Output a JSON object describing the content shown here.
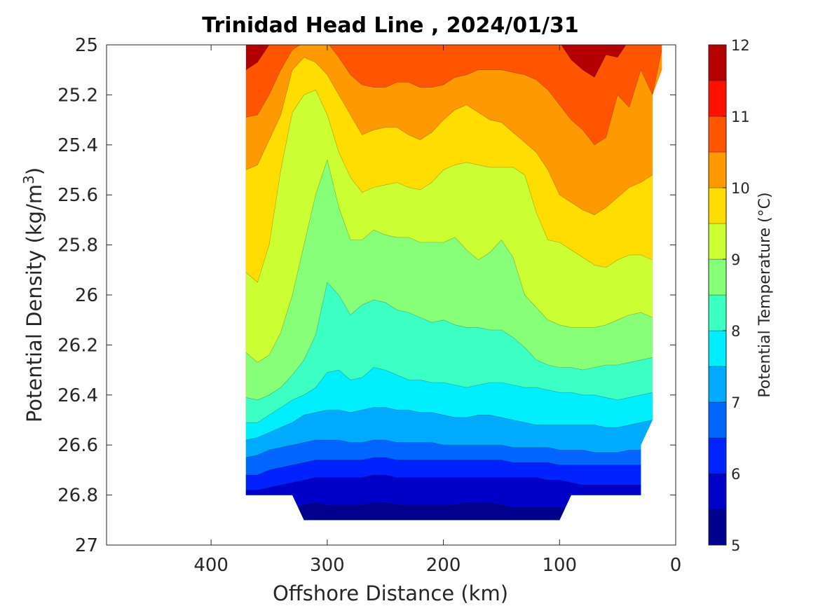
{
  "chart_data": {
    "type": "heatmap",
    "subtype": "filled-contour",
    "title": "Trinidad Head Line , 2024/01/31",
    "xlabel": "Offshore Distance (km)",
    "ylabel": "Potential Density (kg/m",
    "ylabel_superscript": "3",
    "ylabel_close": ")",
    "xlim": [
      490,
      0
    ],
    "x_reversed": true,
    "ylim": [
      25,
      27
    ],
    "y_reversed": true,
    "xticks": [
      400,
      300,
      200,
      100,
      0
    ],
    "xtick_labels": [
      "400",
      "300",
      "200",
      "100",
      "0"
    ],
    "yticks": [
      25,
      25.2,
      25.4,
      25.6,
      25.8,
      26,
      26.2,
      26.4,
      26.6,
      26.8,
      27
    ],
    "ytick_labels": [
      "25",
      "25.2",
      "25.4",
      "25.6",
      "25.8",
      "26",
      "26.2",
      "26.4",
      "26.6",
      "26.8",
      "27"
    ],
    "colorbar": {
      "label": "Potential Temperature (°C)",
      "range": [
        5,
        12
      ],
      "tick_values": [
        5,
        6,
        7,
        8,
        9,
        10,
        11,
        12
      ],
      "tick_labels": [
        "5",
        "6",
        "7",
        "8",
        "9",
        "10",
        "11",
        "12"
      ],
      "level_step": 0.5,
      "colormap": "jet",
      "level_colors": [
        "#00008c",
        "#0000c8",
        "#0022ff",
        "#0066ff",
        "#00aaff",
        "#00eeff",
        "#3cffc3",
        "#87ff78",
        "#ccff33",
        "#ffdd00",
        "#ff9900",
        "#ff5500",
        "#ff1100",
        "#b40000"
      ]
    },
    "x": [
      370,
      360,
      350,
      340,
      330,
      320,
      310,
      300,
      290,
      280,
      270,
      260,
      250,
      240,
      230,
      220,
      210,
      200,
      190,
      180,
      170,
      160,
      150,
      140,
      130,
      120,
      110,
      100,
      90,
      80,
      70,
      60,
      50,
      40,
      30,
      20,
      12
    ],
    "isopycnals_for_temperature": [
      {
        "temperature": 11.0,
        "density": [
          25.1,
          25.07,
          25.0,
          24.97,
          24.95,
          24.95,
          24.95,
          24.96,
          24.97,
          24.97,
          24.97,
          24.96,
          24.96,
          24.95,
          24.95,
          24.95,
          24.95,
          24.95,
          24.95,
          24.95,
          24.95,
          24.95,
          24.95,
          24.95,
          24.95,
          24.95,
          24.97,
          24.99,
          25.06,
          25.1,
          25.13,
          25.04,
          25.05,
          24.98,
          24.96,
          25.0,
          24.98
        ]
      },
      {
        "temperature": 10.5,
        "density": [
          25.29,
          25.28,
          25.2,
          25.1,
          25.02,
          24.99,
          24.98,
          24.99,
          25.05,
          25.12,
          25.16,
          25.17,
          25.17,
          25.15,
          25.15,
          25.17,
          25.17,
          25.16,
          25.13,
          25.12,
          25.1,
          25.1,
          25.1,
          25.11,
          25.12,
          25.14,
          25.18,
          25.24,
          25.3,
          25.34,
          25.4,
          25.37,
          25.2,
          25.25,
          25.1,
          25.2,
          25.02
        ]
      },
      {
        "temperature": 10.0,
        "density": [
          25.5,
          25.48,
          25.38,
          25.28,
          25.1,
          25.05,
          25.07,
          25.12,
          25.2,
          25.28,
          25.36,
          25.34,
          25.33,
          25.33,
          25.36,
          25.38,
          25.35,
          25.3,
          25.26,
          25.24,
          25.27,
          25.3,
          25.31,
          25.35,
          25.39,
          25.43,
          25.5,
          25.6,
          25.63,
          25.66,
          25.68,
          25.65,
          25.61,
          25.57,
          25.55,
          25.52,
          25.5
        ]
      },
      {
        "temperature": 9.5,
        "density": [
          25.91,
          25.95,
          25.8,
          25.5,
          25.27,
          25.2,
          25.18,
          25.28,
          25.43,
          25.53,
          25.59,
          25.57,
          25.56,
          25.55,
          25.57,
          25.58,
          25.55,
          25.5,
          25.48,
          25.47,
          25.48,
          25.49,
          25.49,
          25.49,
          25.52,
          25.67,
          25.78,
          25.79,
          25.82,
          25.85,
          25.88,
          25.89,
          25.86,
          25.84,
          25.84,
          25.86,
          25.86
        ]
      },
      {
        "temperature": 9.0,
        "density": [
          26.23,
          26.27,
          26.24,
          26.15,
          26.0,
          25.8,
          25.6,
          25.46,
          25.65,
          25.78,
          25.78,
          25.74,
          25.76,
          25.77,
          25.77,
          25.79,
          25.79,
          25.79,
          25.77,
          25.82,
          25.86,
          25.83,
          25.78,
          25.85,
          26.0,
          26.05,
          26.1,
          26.12,
          26.13,
          26.13,
          26.13,
          26.12,
          26.1,
          26.08,
          26.07,
          26.09,
          26.09
        ]
      },
      {
        "temperature": 8.5,
        "density": [
          26.41,
          26.42,
          26.4,
          26.37,
          26.32,
          26.26,
          26.16,
          25.95,
          26.0,
          26.08,
          26.04,
          26.02,
          26.03,
          26.06,
          26.07,
          26.09,
          26.11,
          26.1,
          26.12,
          26.13,
          26.13,
          26.14,
          26.14,
          26.17,
          26.21,
          26.26,
          26.28,
          26.29,
          26.29,
          26.3,
          26.29,
          26.28,
          26.28,
          26.27,
          26.26,
          26.25,
          26.25
        ]
      },
      {
        "temperature": 8.0,
        "density": [
          26.51,
          26.51,
          26.48,
          26.45,
          26.42,
          26.4,
          26.37,
          26.31,
          26.3,
          26.34,
          26.33,
          26.29,
          26.3,
          26.32,
          26.34,
          26.34,
          26.35,
          26.35,
          26.36,
          26.37,
          26.36,
          26.35,
          26.35,
          26.36,
          26.37,
          26.37,
          26.38,
          26.39,
          26.39,
          26.4,
          26.4,
          26.41,
          26.42,
          26.41,
          26.4,
          26.39,
          26.39
        ]
      },
      {
        "temperature": 7.5,
        "density": [
          26.58,
          26.57,
          26.55,
          26.53,
          26.51,
          26.48,
          26.47,
          26.46,
          26.46,
          26.47,
          26.46,
          26.45,
          26.45,
          26.46,
          26.46,
          26.47,
          26.47,
          26.48,
          26.49,
          26.49,
          26.48,
          26.48,
          26.49,
          26.5,
          26.51,
          26.52,
          26.52,
          26.52,
          26.52,
          26.52,
          26.52,
          26.53,
          26.53,
          26.52,
          26.51,
          26.5,
          26.5
        ]
      },
      {
        "temperature": 7.0,
        "density": [
          26.65,
          26.64,
          26.62,
          26.61,
          26.6,
          26.59,
          26.58,
          26.58,
          26.58,
          26.59,
          26.59,
          26.58,
          26.58,
          26.59,
          26.59,
          26.59,
          26.59,
          26.6,
          26.6,
          26.6,
          26.6,
          26.6,
          26.6,
          26.61,
          26.61,
          26.61,
          26.61,
          26.62,
          26.62,
          26.62,
          26.63,
          26.63,
          26.63,
          26.62,
          26.62,
          26.62,
          26.62
        ]
      },
      {
        "temperature": 6.5,
        "density": [
          26.72,
          26.72,
          26.7,
          26.69,
          26.68,
          26.67,
          26.66,
          26.66,
          26.66,
          26.66,
          26.66,
          26.65,
          26.65,
          26.66,
          26.66,
          26.66,
          26.66,
          26.66,
          26.66,
          26.66,
          26.66,
          26.66,
          26.66,
          26.67,
          26.67,
          26.67,
          26.67,
          26.68,
          26.68,
          26.68,
          26.68,
          26.68,
          26.68,
          26.68,
          26.68,
          26.68,
          26.68
        ]
      },
      {
        "temperature": 6.0,
        "density": [
          26.78,
          26.78,
          26.77,
          26.76,
          26.75,
          26.74,
          26.73,
          26.73,
          26.73,
          26.73,
          26.73,
          26.72,
          26.72,
          26.73,
          26.73,
          26.73,
          26.73,
          26.73,
          26.73,
          26.73,
          26.73,
          26.73,
          26.73,
          26.73,
          26.73,
          26.73,
          26.74,
          26.74,
          26.75,
          26.76,
          26.76,
          26.76,
          26.76,
          26.76,
          26.76,
          26.76,
          26.76
        ]
      },
      {
        "temperature": 5.5,
        "density": [
          26.85,
          26.85,
          26.85,
          26.85,
          26.85,
          26.84,
          26.83,
          26.84,
          26.84,
          26.84,
          26.84,
          26.83,
          26.83,
          26.84,
          26.84,
          26.84,
          26.84,
          26.84,
          26.84,
          26.83,
          26.83,
          26.83,
          26.84,
          26.85,
          26.85,
          26.85,
          26.85,
          26.85,
          26.85,
          26.85,
          26.85,
          26.85,
          26.85,
          26.85,
          26.85,
          26.85,
          26.85
        ]
      }
    ],
    "data_extent": {
      "top_boundary": {
        "x": [
          370,
          12
        ],
        "density": [
          25,
          25
        ]
      },
      "right_edge": {
        "x": [
          12,
          12,
          20,
          20,
          30,
          30
        ],
        "density": [
          25.0,
          25.1,
          25.2,
          26.5,
          26.6,
          26.8
        ]
      },
      "bottom_edge": {
        "x": [
          30,
          90,
          100,
          320,
          330,
          370
        ],
        "density": [
          26.8,
          26.8,
          26.9,
          26.9,
          26.8,
          26.8
        ]
      }
    }
  }
}
